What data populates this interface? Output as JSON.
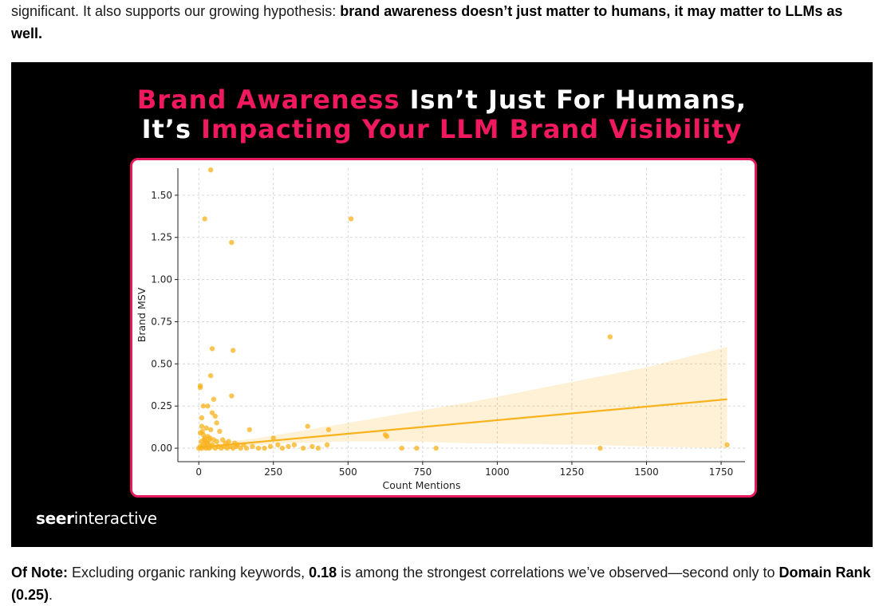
{
  "article": {
    "intro_prefix": "significant. It also supports our growing hypothesis: ",
    "intro_bold": "brand awareness doesn’t just matter to humans, it may matter to LLMs as well.",
    "note_label": "Of Note:",
    "note_text_1": " Excluding organic ranking keywords, ",
    "note_value": "0.18",
    "note_text_2": " is among the strongest correlations we’ve observed—second only to ",
    "note_bold_end": "Domain Rank (0.25)",
    "note_end": "."
  },
  "figure": {
    "headline_line1_accent": "Brand Awareness",
    "headline_line1_rest": " Isn’t Just For Humans,",
    "headline_line2_start": "It’s ",
    "headline_line2_accent": "Impacting Your LLM Brand Visibility",
    "brand_bold": "seer",
    "brand_rest": "interactive",
    "colors": {
      "accent": "#f0185e",
      "border": "#e5195e",
      "point": "#f9b21b",
      "background": "#000000"
    }
  },
  "chart_data": {
    "type": "scatter",
    "xlabel": "Count Mentions",
    "ylabel": "Brand MSV",
    "xlim": [
      -70,
      1830
    ],
    "ylim": [
      -0.08,
      1.66
    ],
    "xticks": [
      0,
      250,
      500,
      750,
      1000,
      1250,
      1500,
      1750
    ],
    "xtick_labels": [
      "0",
      "250",
      "500",
      "750",
      "1000",
      "1250",
      "1500",
      "1750"
    ],
    "yticks": [
      0.0,
      0.25,
      0.5,
      0.75,
      1.0,
      1.25,
      1.5
    ],
    "ytick_labels": [
      "0.00",
      "0.25",
      "0.50",
      "0.75",
      "1.00",
      "1.25",
      "1.50"
    ],
    "grid": true,
    "regression": {
      "x": [
        0,
        1770
      ],
      "y": [
        0.005,
        0.29
      ]
    },
    "confidence_band": {
      "x": [
        0,
        100,
        200,
        300,
        500,
        700,
        900,
        1100,
        1300,
        1500,
        1770
      ],
      "upper": [
        0.035,
        0.04,
        0.06,
        0.09,
        0.15,
        0.21,
        0.27,
        0.34,
        0.41,
        0.48,
        0.6
      ],
      "lower": [
        -0.02,
        0.005,
        0.02,
        0.03,
        0.04,
        0.04,
        0.03,
        0.025,
        0.02,
        0.01,
        0.0
      ]
    },
    "points": [
      [
        40,
        1.65
      ],
      [
        20,
        1.36
      ],
      [
        510,
        1.36
      ],
      [
        110,
        1.22
      ],
      [
        45,
        0.59
      ],
      [
        115,
        0.58
      ],
      [
        40,
        0.43
      ],
      [
        5,
        0.37
      ],
      [
        5,
        0.36
      ],
      [
        110,
        0.31
      ],
      [
        50,
        0.29
      ],
      [
        15,
        0.25
      ],
      [
        30,
        0.25
      ],
      [
        45,
        0.21
      ],
      [
        55,
        0.19
      ],
      [
        10,
        0.18
      ],
      [
        60,
        0.15
      ],
      [
        10,
        0.13
      ],
      [
        25,
        0.12
      ],
      [
        40,
        0.11
      ],
      [
        170,
        0.11
      ],
      [
        70,
        0.1
      ],
      [
        365,
        0.13
      ],
      [
        435,
        0.11
      ],
      [
        1378,
        0.66
      ],
      [
        625,
        0.08
      ],
      [
        630,
        0.07
      ],
      [
        5,
        0.09
      ],
      [
        15,
        0.08
      ],
      [
        30,
        0.07
      ],
      [
        20,
        0.06
      ],
      [
        35,
        0.05
      ],
      [
        50,
        0.05
      ],
      [
        60,
        0.04
      ],
      [
        80,
        0.05
      ],
      [
        90,
        0.03
      ],
      [
        100,
        0.04
      ],
      [
        120,
        0.03
      ],
      [
        130,
        0.02
      ],
      [
        150,
        0.02
      ],
      [
        250,
        0.06
      ],
      [
        265,
        0.02
      ],
      [
        300,
        0.01
      ],
      [
        320,
        0.02
      ],
      [
        380,
        0.01
      ],
      [
        400,
        0.0
      ],
      [
        430,
        0.02
      ],
      [
        680,
        0.0
      ],
      [
        730,
        0.0
      ],
      [
        795,
        0.0
      ],
      [
        1345,
        0.0
      ],
      [
        1770,
        0.02
      ],
      [
        0,
        0.0
      ],
      [
        5,
        0.01
      ],
      [
        10,
        0.0
      ],
      [
        15,
        0.02
      ],
      [
        20,
        0.01
      ],
      [
        25,
        0.0
      ],
      [
        30,
        0.03
      ],
      [
        35,
        0.0
      ],
      [
        40,
        0.01
      ],
      [
        45,
        0.02
      ],
      [
        55,
        0.0
      ],
      [
        65,
        0.01
      ],
      [
        75,
        0.0
      ],
      [
        85,
        0.01
      ],
      [
        95,
        0.0
      ],
      [
        105,
        0.01
      ],
      [
        115,
        0.0
      ],
      [
        125,
        0.01
      ],
      [
        140,
        0.0
      ],
      [
        160,
        0.0
      ],
      [
        180,
        0.01
      ],
      [
        200,
        0.0
      ],
      [
        220,
        0.0
      ],
      [
        240,
        0.01
      ],
      [
        280,
        0.0
      ],
      [
        350,
        0.0
      ],
      [
        8,
        0.04
      ],
      [
        18,
        0.05
      ],
      [
        28,
        0.03
      ],
      [
        38,
        0.06
      ],
      [
        12,
        0.1
      ],
      [
        22,
        0.04
      ]
    ]
  }
}
